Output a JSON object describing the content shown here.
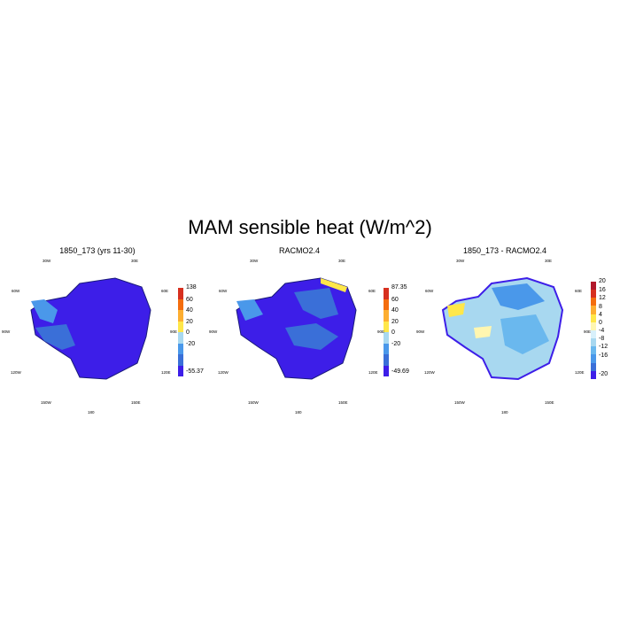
{
  "title": "MAM sensible heat (W/m^2)",
  "panels": [
    {
      "title": "1850_173 (yrs 11-30)",
      "colorbar": {
        "labels": [
          "138",
          "60",
          "40",
          "20",
          "0",
          "-20",
          "-55.37"
        ],
        "colors": [
          "#d7301f",
          "#f46d0e",
          "#fdae31",
          "#ffe74a",
          "#a8d8f0",
          "#4a98ea",
          "#3a6fd8",
          "#3d1ee8"
        ]
      }
    },
    {
      "title": "RACMO2.4",
      "colorbar": {
        "labels": [
          "87.35",
          "60",
          "40",
          "20",
          "0",
          "-20",
          "-49.69"
        ],
        "colors": [
          "#d7301f",
          "#f46d0e",
          "#fdae31",
          "#ffe74a",
          "#a8d8f0",
          "#4a98ea",
          "#3a6fd8",
          "#3d1ee8"
        ]
      }
    },
    {
      "title": "1850_173 - RACMO2.4",
      "colorbar": {
        "labels": [
          "20",
          "16",
          "12",
          "8",
          "4",
          "0",
          "-4",
          "-8",
          "-12",
          "-16",
          "-20"
        ],
        "colors": [
          "#b2182b",
          "#d7301f",
          "#f46d0e",
          "#fdae31",
          "#ffe74a",
          "#fff6b0",
          "#d8f0fb",
          "#a8d8f0",
          "#6ab8ee",
          "#4a98ea",
          "#3a6fd8",
          "#3d1ee8"
        ]
      }
    }
  ],
  "lon_labels": [
    "30W",
    "30E",
    "60W",
    "60E",
    "90W",
    "90E",
    "120W",
    "120E",
    "150W",
    "150E",
    "180"
  ]
}
